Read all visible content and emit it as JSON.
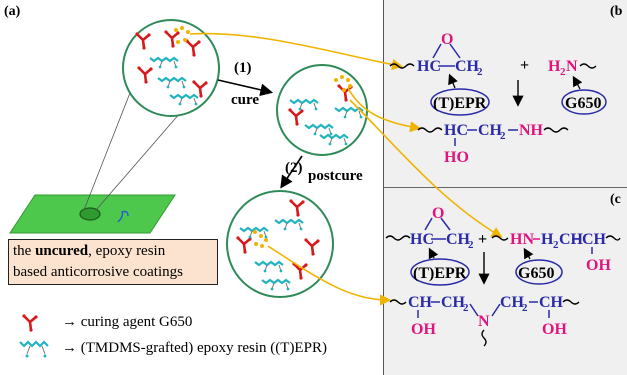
{
  "panel_a": {
    "label": "(a)",
    "step1": "(1)",
    "step1_name": "cure",
    "step2": "(2)",
    "step2_name": "postcure",
    "caption_pre": "the ",
    "caption_bold": "uncured",
    "caption_post": ", epoxy resin",
    "caption_line2": "based anticorrosive coatings",
    "legend_curing_agent": "→  curing agent G650",
    "legend_resin": "→  (TMDMS-grafted) epoxy resin  ((T)EPR)"
  },
  "panel_b": {
    "label": "(b",
    "epoxide_o": "O",
    "epoxide_hc": "HC",
    "epoxide_ch2": "CH",
    "ch2_sub": "2",
    "plus": "+",
    "amine_h": "H",
    "amine_sub": "2",
    "amine_n": "N",
    "tepr_label": "(T)EPR",
    "g650_label": "G650",
    "product_hc": "HC",
    "product_chain": "CH",
    "product_nh": "NH",
    "product_ho": "HO"
  },
  "panel_c": {
    "label": "(c",
    "epoxide_o": "O",
    "epoxide_hc": "HC",
    "epoxide_ch2": "CH",
    "ch2_sub": "2",
    "plus": "+",
    "amine_chain": "HN",
    "amine_rest": "H",
    "amine_ch": "CH",
    "amine_oh": "OH",
    "tepr_label": "(T)EPR",
    "g650_label": "G650",
    "product_ch_left": "CH",
    "product_ch2_left": "CH",
    "product_n": "N",
    "product_ch2_right": "CH",
    "product_ch_right": "CH",
    "product_oh_left": "OH",
    "product_oh_right": "OH"
  },
  "colors": {
    "teal_circle": "#2e8b57",
    "resin": "#22b3c0",
    "agent": "#d7191c",
    "dots": "#f0b400",
    "blue_chem": "#2a2aa8",
    "magenta_chem": "#e0147d",
    "arrow_orange": "#f0b400",
    "coating_green": "#4dc84d",
    "panel_gray": "#f0f0f0"
  }
}
